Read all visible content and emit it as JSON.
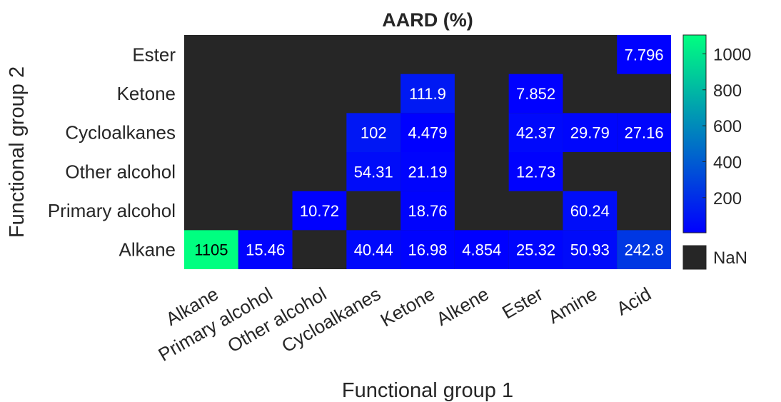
{
  "chart_data": {
    "type": "heatmap",
    "title": "AARD (%)",
    "xlabel": "Functional group 1",
    "ylabel": "Functional group 2",
    "x_categories": [
      "Alkane",
      "Primary alcohol",
      "Other alcohol",
      "Cycloalkanes",
      "Ketone",
      "Alkene",
      "Ester",
      "Amine",
      "Acid"
    ],
    "y_categories": [
      "Ester",
      "Ketone",
      "Cycloalkanes",
      "Other alcohol",
      "Primary alcohol",
      "Alkane"
    ],
    "values": [
      [
        null,
        null,
        null,
        null,
        null,
        null,
        null,
        null,
        7.796
      ],
      [
        null,
        null,
        null,
        null,
        111.9,
        null,
        7.852,
        null,
        null
      ],
      [
        null,
        null,
        null,
        102,
        4.479,
        null,
        42.37,
        29.79,
        27.16
      ],
      [
        null,
        null,
        null,
        54.31,
        21.19,
        null,
        12.73,
        null,
        null
      ],
      [
        null,
        null,
        10.72,
        null,
        18.76,
        null,
        null,
        60.24,
        null
      ],
      [
        1105,
        15.46,
        null,
        40.44,
        16.98,
        4.854,
        25.32,
        50.93,
        242.8
      ]
    ],
    "value_labels": [
      [
        null,
        null,
        null,
        null,
        null,
        null,
        null,
        null,
        "7.796"
      ],
      [
        null,
        null,
        null,
        null,
        "111.9",
        null,
        "7.852",
        null,
        null
      ],
      [
        null,
        null,
        null,
        "102",
        "4.479",
        null,
        "42.37",
        "29.79",
        "27.16"
      ],
      [
        null,
        null,
        null,
        "54.31",
        "21.19",
        null,
        "12.73",
        null,
        null
      ],
      [
        null,
        null,
        "10.72",
        null,
        "18.76",
        null,
        null,
        "60.24",
        null
      ],
      [
        "1105",
        "15.46",
        null,
        "40.44",
        "16.98",
        "4.854",
        "25.32",
        "50.93",
        "242.8"
      ]
    ],
    "colorbar": {
      "range": [
        4.479,
        1105
      ],
      "ticks": [
        200,
        400,
        600,
        800,
        1000
      ],
      "tick_labels": [
        "200",
        "400",
        "600",
        "800",
        "1000"
      ],
      "colormap": [
        "#0000ff",
        "#00ff80"
      ],
      "nan_label": "NaN",
      "nan_color": "#262626"
    }
  }
}
